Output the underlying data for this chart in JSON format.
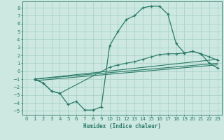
{
  "xlabel": "Humidex (Indice chaleur)",
  "xlim": [
    -0.5,
    23.5
  ],
  "ylim": [
    -5.5,
    8.8
  ],
  "yticks": [
    -5,
    -4,
    -3,
    -2,
    -1,
    0,
    1,
    2,
    3,
    4,
    5,
    6,
    7,
    8
  ],
  "xticks": [
    0,
    1,
    2,
    3,
    4,
    5,
    6,
    7,
    8,
    9,
    10,
    11,
    12,
    13,
    14,
    15,
    16,
    17,
    18,
    19,
    20,
    21,
    22,
    23
  ],
  "bg_color": "#cce8e0",
  "grid_color": "#a8cfc4",
  "line_color": "#2a7a68",
  "curve1_x": [
    1,
    2,
    3,
    4,
    5,
    6,
    7,
    8,
    9,
    10,
    11,
    12,
    13,
    14,
    15,
    16,
    17,
    18,
    19,
    20,
    21,
    22,
    23
  ],
  "curve1_y": [
    -1.0,
    -1.5,
    -2.5,
    -2.8,
    -4.2,
    -3.8,
    -4.9,
    -4.9,
    -4.5,
    3.2,
    5.0,
    6.5,
    7.0,
    8.0,
    8.2,
    8.2,
    7.2,
    3.5,
    2.3,
    2.5,
    2.2,
    1.0,
    0.4
  ],
  "curve2_x": [
    1,
    2,
    3,
    4,
    10,
    11,
    12,
    13,
    14,
    15,
    16,
    17,
    18,
    19,
    20,
    21,
    22,
    23
  ],
  "curve2_y": [
    -1.0,
    -1.5,
    -2.5,
    -2.8,
    0.5,
    0.8,
    1.0,
    1.2,
    1.5,
    1.8,
    2.1,
    2.2,
    2.2,
    2.3,
    2.5,
    2.2,
    1.8,
    1.4
  ],
  "line1_x": [
    1,
    23
  ],
  "line1_y": [
    -1.0,
    1.5
  ],
  "line2_x": [
    1,
    23
  ],
  "line2_y": [
    -1.0,
    1.0
  ],
  "line3_x": [
    1,
    23
  ],
  "line3_y": [
    -1.2,
    0.8
  ]
}
